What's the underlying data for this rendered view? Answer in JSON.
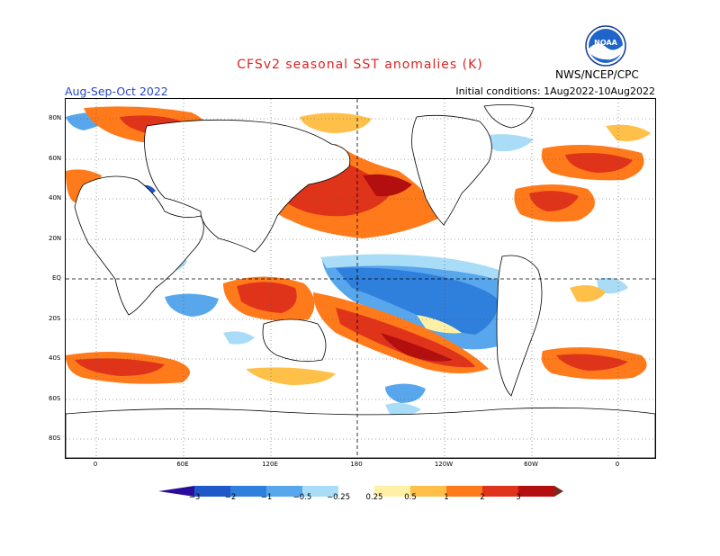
{
  "title": "CFSv2 seasonal SST anomalies (K)",
  "season": "Aug-Sep-Oct 2022",
  "initial_conditions": "Initial conditions: 1Aug2022-10Aug2022",
  "agency": "NWS/NCEP/CPC",
  "logo_text": "NOAA",
  "lat_labels": [
    "80N",
    "60N",
    "40N",
    "20N",
    "EQ",
    "20S",
    "40S",
    "60S",
    "80S"
  ],
  "lon_labels": [
    "0",
    "60E",
    "120E",
    "180",
    "120W",
    "60W",
    "0"
  ],
  "colorbar": {
    "labels": [
      "−3",
      "−2",
      "−1",
      "−0.5",
      "−0.25",
      "0.25",
      "0.5",
      "1",
      "2",
      "3"
    ],
    "colors": [
      "#2a0b9a",
      "#1f58c8",
      "#2f7fdc",
      "#58a6ec",
      "#a9dcf6",
      "#ffffff",
      "#fff0a6",
      "#ffc04a",
      "#ff7a1a",
      "#e0341a",
      "#b40f0f",
      "#7a2a1a"
    ]
  },
  "colors": {
    "strong_warm": "#b40f0f",
    "warm": "#e0341a",
    "moderate_warm": "#ff7a1a",
    "weak_warm": "#ffc04a",
    "slight_warm": "#fff0a6",
    "slight_cool": "#a9dcf6",
    "weak_cool": "#58a6ec",
    "moderate_cool": "#2f7fdc"
  }
}
